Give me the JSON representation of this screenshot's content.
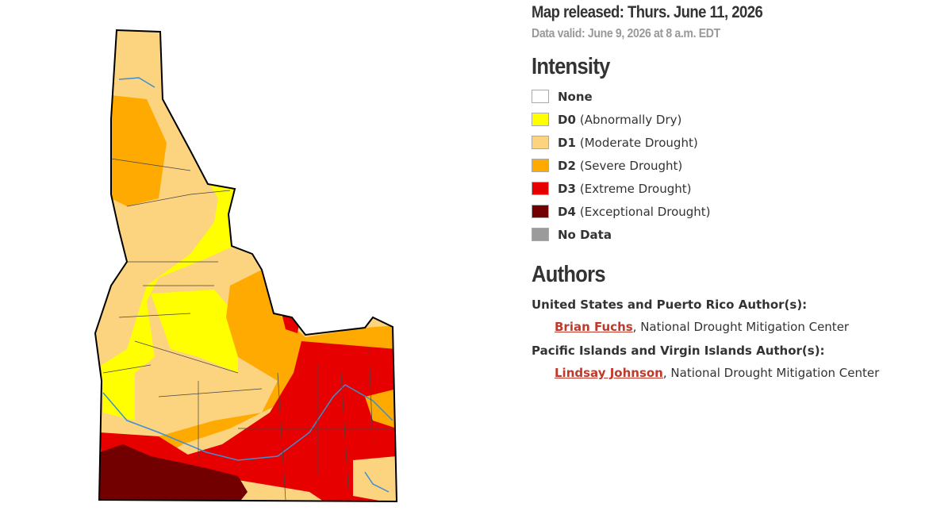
{
  "header": {
    "released": "Map released: Thurs. June 11, 2026",
    "valid": "Data valid: June 9, 2026 at 8 a.m. EDT"
  },
  "intensity": {
    "title": "Intensity",
    "items": [
      {
        "code": "None",
        "color": "#ffffff"
      },
      {
        "code": "D0",
        "description": "(Abnormally Dry)",
        "color": "#ffff00"
      },
      {
        "code": "D1",
        "description": "(Moderate Drought)",
        "color": "#fcd37f"
      },
      {
        "code": "D2",
        "description": "(Severe Drought)",
        "color": "#ffaa00"
      },
      {
        "code": "D3",
        "description": "(Extreme Drought)",
        "color": "#e60000"
      },
      {
        "code": "D4",
        "description": "(Exceptional Drought)",
        "color": "#730000"
      },
      {
        "code": "No Data",
        "color": "#9b9b9b"
      }
    ]
  },
  "authors": {
    "title": "Authors",
    "sections": [
      {
        "label": "United States and Puerto Rico Author(s):",
        "name": "Brian Fuchs",
        "affiliation": ", National Drought Mitigation Center"
      },
      {
        "label": "Pacific Islands and Virgin Islands Author(s):",
        "name": "Lindsay Johnson",
        "affiliation": ", National Drought Mitigation Center"
      }
    ]
  }
}
